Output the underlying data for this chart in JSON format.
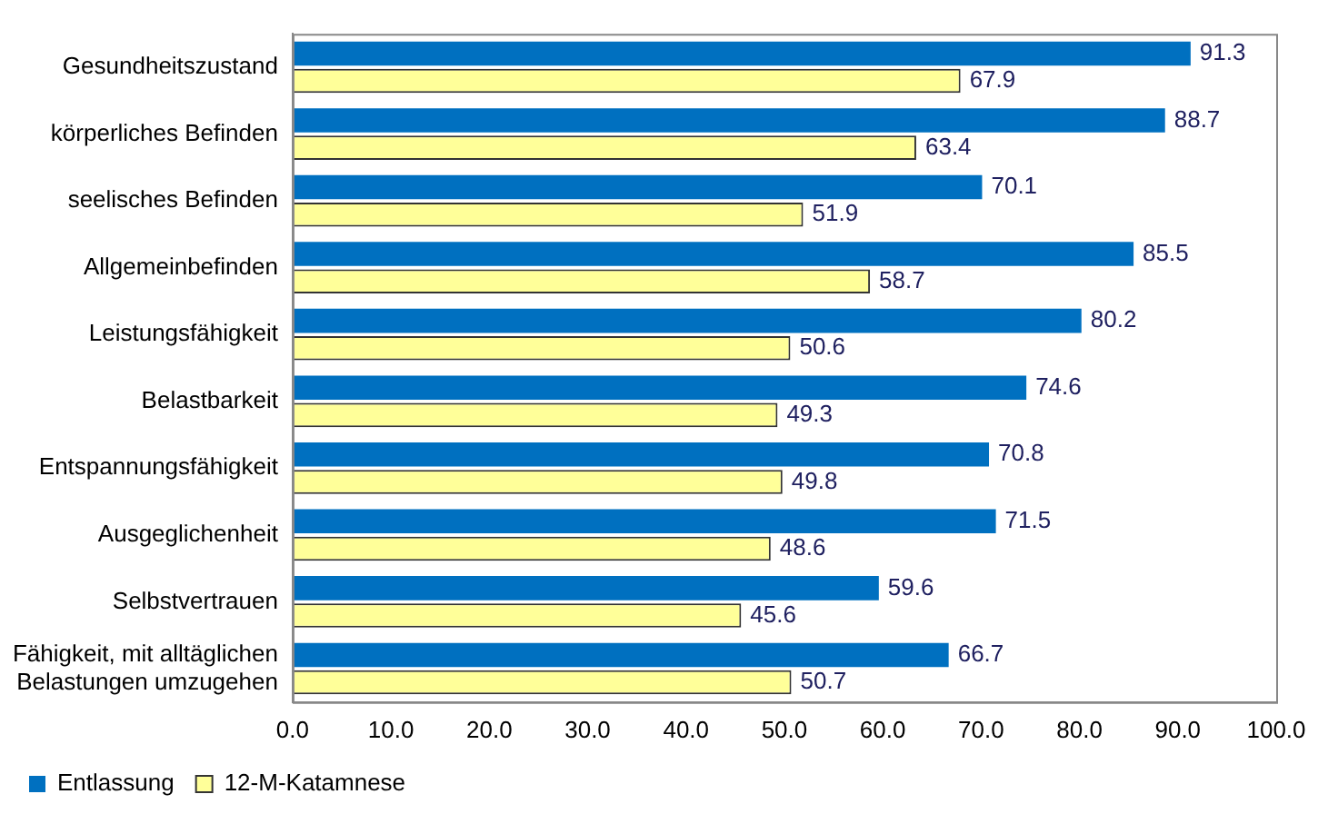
{
  "chart_data": {
    "type": "bar",
    "orientation": "horizontal",
    "categories": [
      "Gesundheitszustand",
      "körperliches Befinden",
      "seelisches Befinden",
      "Allgemeinbefinden",
      "Leistungsfähigkeit",
      "Belastbarkeit",
      "Entspannungsfähigkeit",
      "Ausgeglichenheit",
      "Selbstvertrauen",
      "Fähigkeit, mit alltäglichen Belastungen umzugehen"
    ],
    "series": [
      {
        "name": "Entlassung",
        "color": "#0070c0",
        "values": [
          91.3,
          88.7,
          70.1,
          85.5,
          80.2,
          74.6,
          70.8,
          71.5,
          59.6,
          66.7
        ]
      },
      {
        "name": "12-M-Katamnese",
        "color": "#ffff99",
        "values": [
          67.9,
          63.4,
          51.9,
          58.7,
          50.6,
          49.3,
          49.8,
          48.6,
          45.6,
          50.7
        ]
      }
    ],
    "xlim": [
      0,
      100
    ],
    "xticks": [
      {
        "value": 0,
        "label": "0.0"
      },
      {
        "value": 10,
        "label": "10.0"
      },
      {
        "value": 20,
        "label": "20.0"
      },
      {
        "value": 30,
        "label": "30.0"
      },
      {
        "value": 40,
        "label": "40.0"
      },
      {
        "value": 50,
        "label": "50.0"
      },
      {
        "value": 60,
        "label": "60.0"
      },
      {
        "value": 70,
        "label": "70.0"
      },
      {
        "value": 80,
        "label": "80.0"
      },
      {
        "value": 90,
        "label": "90.0"
      },
      {
        "value": 100,
        "label": "100.0"
      }
    ],
    "data_labels": true,
    "grid": false,
    "legend": "bottom"
  }
}
